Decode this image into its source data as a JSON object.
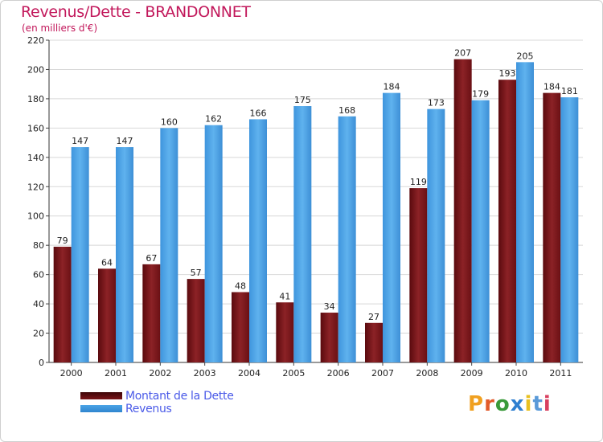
{
  "title": "Revenus/Dette - BRANDONNET",
  "subtitle": "(en milliers d'€)",
  "logo_text": "Proxiti",
  "colors": {
    "title": "#c2185b",
    "dette": "#7a1418",
    "revenus": "#4aa3e6",
    "legend_text": "#4a5ae8",
    "grid": "#d8d8d8",
    "axis_text": "#222222"
  },
  "chart_data": {
    "type": "bar",
    "title": "Revenus/Dette - BRANDONNET",
    "subtitle": "(en milliers d'€)",
    "xlabel": "",
    "ylabel": "",
    "ylim": [
      0,
      220
    ],
    "yticks": [
      0,
      20,
      40,
      60,
      80,
      100,
      120,
      140,
      160,
      180,
      200,
      220
    ],
    "grid": true,
    "legend_position": "bottom-left",
    "categories": [
      "2000",
      "2001",
      "2002",
      "2003",
      "2004",
      "2005",
      "2006",
      "2007",
      "2008",
      "2009",
      "2010",
      "2011"
    ],
    "series": [
      {
        "name": "Montant de la Dette",
        "color": "#7a1418",
        "values": [
          79,
          64,
          67,
          57,
          48,
          41,
          34,
          27,
          119,
          207,
          193,
          184
        ]
      },
      {
        "name": "Revenus",
        "color": "#4aa3e6",
        "values": [
          147,
          147,
          160,
          162,
          166,
          175,
          168,
          184,
          173,
          179,
          205,
          181
        ]
      }
    ]
  }
}
